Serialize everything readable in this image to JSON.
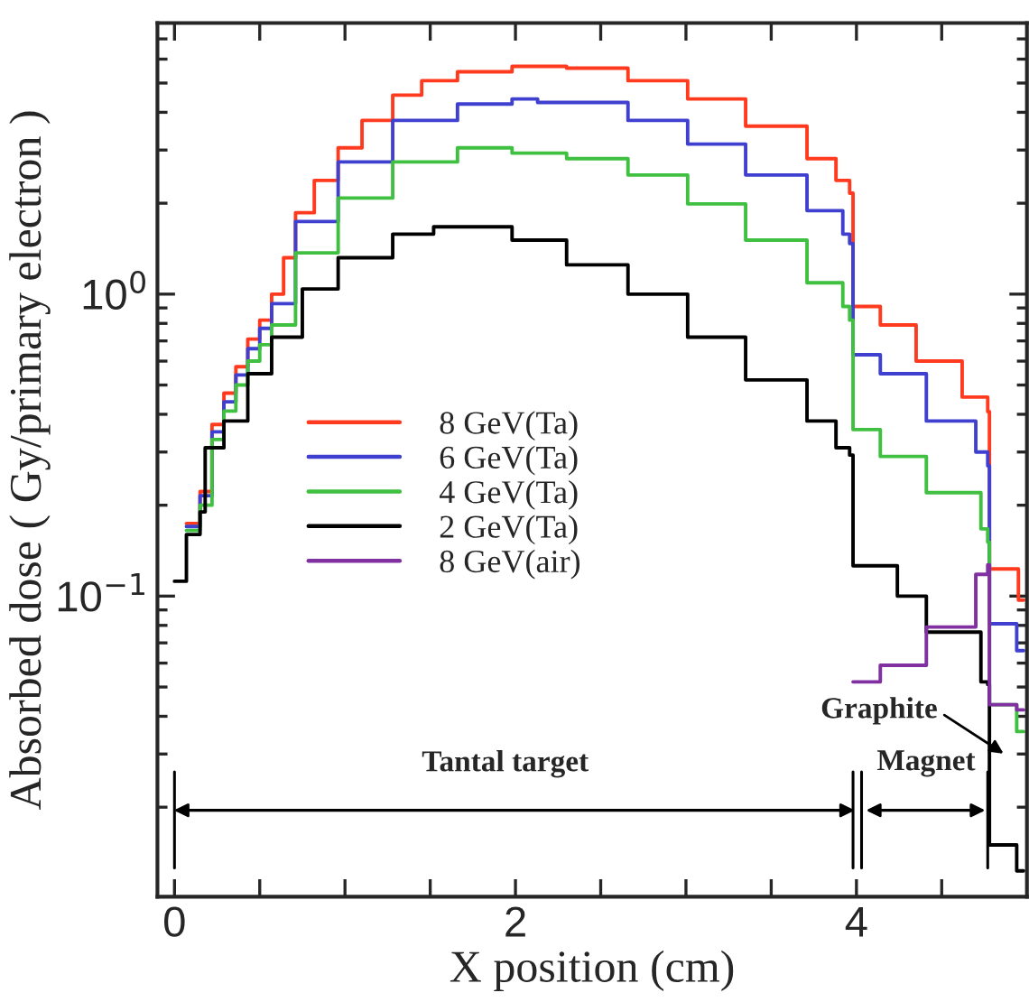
{
  "chart_data": {
    "type": "step",
    "xlabel": "X position (cm)",
    "ylabel": "Absorbed dose ( Gy/primary electron )",
    "log": "y",
    "xlim": [
      -0.1,
      5.0
    ],
    "ylim": [
      0.0101,
      7.9
    ],
    "xticks": [
      0,
      {
        "value": 0.5,
        "label": null
      },
      {
        "value": 1,
        "label": null
      },
      {
        "value": 1.5,
        "label": null
      },
      2,
      {
        "value": 2.5,
        "label": null
      },
      {
        "value": 3,
        "label": null
      },
      {
        "value": 3.5,
        "label": null
      },
      4,
      {
        "value": 4.5,
        "label": null
      }
    ],
    "yticks": [
      {
        "value": 0.1,
        "label": "10$^{−1}$"
      },
      {
        "value": 1,
        "label": "10$^{0}$"
      }
    ],
    "grid": false,
    "legend": "lower left",
    "series": [
      {
        "name": "8 GeV(Ta)",
        "color": "#ff3a1f",
        "x": [
          0.07,
          0.15,
          0.22,
          0.29,
          0.36,
          0.43,
          0.5,
          0.57,
          0.64,
          0.71,
          0.82,
          0.96,
          1.1,
          1.28,
          1.45,
          1.66,
          1.98,
          2.3,
          2.66,
          3.01,
          3.35,
          3.71,
          3.88,
          3.96,
          3.98,
          4.14,
          4.35,
          4.62,
          4.77,
          4.78,
          4.95,
          4.98
        ],
        "values": [
          0.174,
          0.222,
          0.37,
          0.47,
          0.575,
          0.71,
          0.82,
          1.0,
          1.32,
          1.86,
          2.38,
          3.05,
          3.76,
          4.56,
          5.09,
          5.45,
          5.68,
          5.6,
          5.09,
          4.43,
          3.6,
          2.81,
          2.38,
          2.16,
          0.91,
          0.79,
          0.6,
          0.456,
          0.408,
          0.123,
          0.097,
          0.097
        ]
      },
      {
        "name": "6 GeV(Ta)",
        "color": "#4040d0",
        "x": [
          0.07,
          0.15,
          0.22,
          0.29,
          0.36,
          0.43,
          0.5,
          0.57,
          0.71,
          0.96,
          1.28,
          1.66,
          1.98,
          2.13,
          2.66,
          3.01,
          3.35,
          3.71,
          3.92,
          3.96,
          3.98,
          4.14,
          4.41,
          4.7,
          4.77,
          4.78,
          4.94,
          4.98
        ],
        "values": [
          0.17,
          0.215,
          0.35,
          0.44,
          0.54,
          0.66,
          0.77,
          0.93,
          1.74,
          2.74,
          3.76,
          4.26,
          4.43,
          4.31,
          3.76,
          3.14,
          2.48,
          1.89,
          1.58,
          1.47,
          0.63,
          0.545,
          0.38,
          0.3,
          0.27,
          0.081,
          0.066,
          0.066
        ]
      },
      {
        "name": "4 GeV(Ta)",
        "color": "#40c040",
        "x": [
          0.07,
          0.15,
          0.22,
          0.29,
          0.36,
          0.43,
          0.5,
          0.57,
          0.71,
          0.96,
          1.28,
          1.66,
          1.98,
          2.3,
          2.66,
          3.01,
          3.35,
          3.71,
          3.92,
          3.96,
          3.98,
          4.14,
          4.41,
          4.73,
          4.77,
          4.78,
          4.94,
          4.98
        ],
        "values": [
          0.165,
          0.2,
          0.33,
          0.41,
          0.5,
          0.6,
          0.68,
          0.79,
          1.37,
          2.08,
          2.74,
          3.05,
          2.93,
          2.81,
          2.48,
          1.99,
          1.51,
          1.09,
          0.91,
          0.82,
          0.356,
          0.29,
          0.22,
          0.167,
          0.151,
          0.0437,
          0.0356,
          0.0356
        ]
      },
      {
        "name": "2 GeV(Ta)",
        "color": "#000000",
        "x": [
          0,
          0.07,
          0.15,
          0.18,
          0.29,
          0.43,
          0.57,
          0.75,
          0.96,
          1.28,
          1.52,
          1.98,
          2.3,
          2.66,
          3.01,
          3.35,
          3.71,
          3.88,
          3.96,
          3.98,
          4.24,
          4.41,
          4.73,
          4.77,
          4.78,
          4.94,
          4.98
        ],
        "values": [
          0.112,
          0.16,
          0.19,
          0.31,
          0.38,
          0.545,
          0.72,
          1.04,
          1.32,
          1.58,
          1.67,
          1.51,
          1.25,
          1.0,
          0.72,
          0.52,
          0.38,
          0.31,
          0.293,
          0.126,
          0.1,
          0.076,
          0.052,
          0.051,
          0.015,
          0.0123,
          0.0123
        ]
      },
      {
        "name": "8 GeV(air)",
        "color": "#8030a0",
        "x": [
          3.98,
          4.14,
          4.41,
          4.7,
          4.77,
          4.78,
          4.94,
          4.98
        ],
        "values": [
          0.052,
          0.059,
          0.079,
          0.118,
          0.127,
          0.0437,
          0.042,
          0.042
        ]
      }
    ],
    "ref_lines": [
      {
        "axis": "x",
        "value": 0
      },
      {
        "axis": "x",
        "value": 3.98
      },
      {
        "axis": "x",
        "value": 4.03
      },
      {
        "axis": "x",
        "value": 4.77
      }
    ],
    "annotations": [
      "Tantal target",
      "Magnet",
      "Graphite"
    ]
  }
}
